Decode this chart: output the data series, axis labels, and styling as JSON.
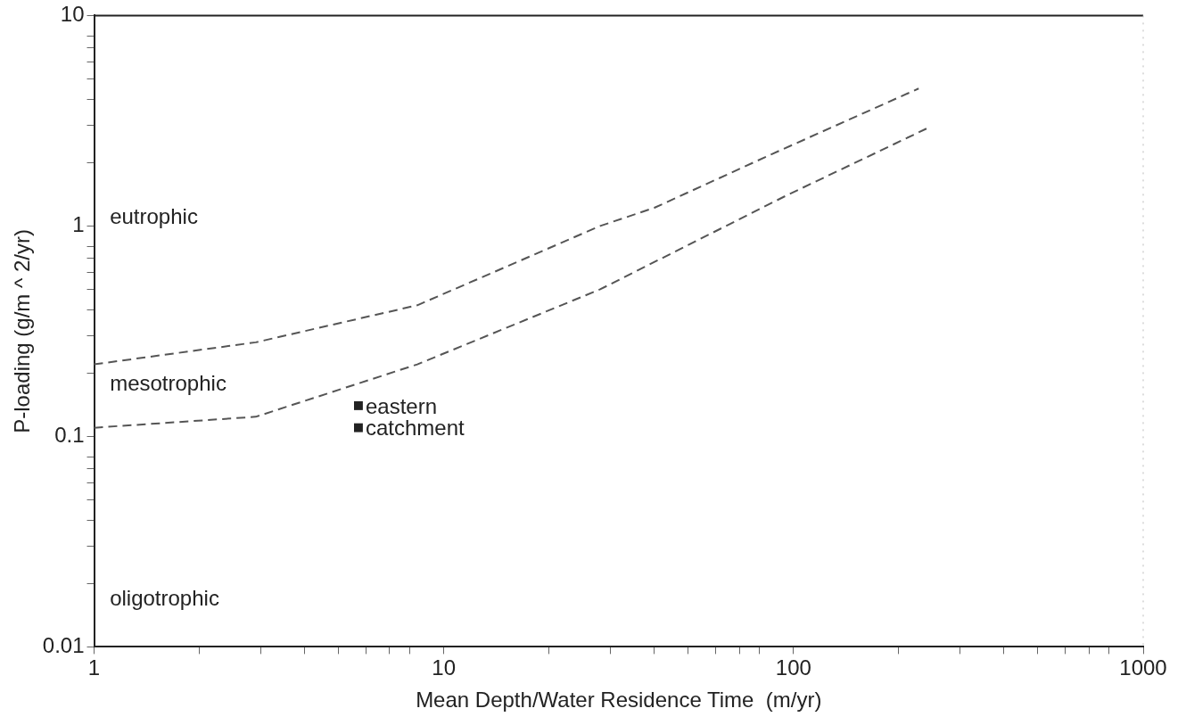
{
  "chart_data": {
    "type": "line",
    "xlabel": "Mean Depth/Water Residence Time  (m/yr)",
    "ylabel": "P-loading (g/m ^ 2/yr)",
    "log": "xy",
    "xlim": [
      1,
      1000
    ],
    "ylim": [
      0.01,
      10
    ],
    "xticks": [
      1,
      {
        "value": 2,
        "label": null
      },
      {
        "value": 3,
        "label": null
      },
      {
        "value": 4,
        "label": null
      },
      {
        "value": 5,
        "label": null
      },
      {
        "value": 6,
        "label": null
      },
      {
        "value": 7,
        "label": null
      },
      {
        "value": 8,
        "label": null
      },
      10,
      {
        "value": 20,
        "label": null
      },
      {
        "value": 30,
        "label": null
      },
      {
        "value": 40,
        "label": null
      },
      {
        "value": 50,
        "label": null
      },
      {
        "value": 60,
        "label": null
      },
      {
        "value": 70,
        "label": null
      },
      {
        "value": 80,
        "label": null
      },
      100,
      {
        "value": 200,
        "label": null
      },
      {
        "value": 300,
        "label": null
      },
      {
        "value": 400,
        "label": null
      },
      {
        "value": 500,
        "label": null
      },
      {
        "value": 600,
        "label": null
      },
      {
        "value": 700,
        "label": null
      },
      {
        "value": 800,
        "label": null
      },
      1000
    ],
    "yticks": [
      0.01,
      {
        "value": 0.02,
        "label": null
      },
      {
        "value": 0.03,
        "label": null
      },
      {
        "value": 0.04,
        "label": null
      },
      {
        "value": 0.05,
        "label": null
      },
      {
        "value": 0.06,
        "label": null
      },
      {
        "value": 0.07,
        "label": null
      },
      {
        "value": 0.08,
        "label": null
      },
      0.1,
      {
        "value": 0.2,
        "label": null
      },
      {
        "value": 0.3,
        "label": null
      },
      {
        "value": 0.4,
        "label": null
      },
      {
        "value": 0.5,
        "label": null
      },
      {
        "value": 0.6,
        "label": null
      },
      {
        "value": 0.7,
        "label": null
      },
      {
        "value": 0.8,
        "label": null
      },
      1,
      {
        "value": 2,
        "label": null
      },
      {
        "value": 3,
        "label": null
      },
      {
        "value": 4,
        "label": null
      },
      {
        "value": 5,
        "label": null
      },
      {
        "value": 6,
        "label": null
      },
      {
        "value": 7,
        "label": null
      },
      {
        "value": 8,
        "label": null
      },
      10
    ],
    "grid": false,
    "legend": false,
    "series": [
      {
        "color": "#555555",
        "line_style": "dashed",
        "marker": "none",
        "x": [
          1,
          2.9,
          8.4,
          28,
          40,
          87,
          228
        ],
        "values": [
          0.22,
          0.28,
          0.42,
          1.0,
          1.22,
          2.2,
          4.5
        ]
      },
      {
        "color": "#555555",
        "line_style": "dashed",
        "marker": "none",
        "x": [
          1,
          2.9,
          8.4,
          28,
          95,
          240
        ],
        "values": [
          0.11,
          0.124,
          0.22,
          0.5,
          1.39,
          2.9
        ]
      },
      {
        "type": "scatter",
        "color": "#222222",
        "marker": "square",
        "x": [
          5.7,
          5.7
        ],
        "values": [
          0.14,
          0.11
        ]
      }
    ],
    "annotations": [
      "eutrophic",
      "mesotrophic",
      "oligotrophic",
      {
        "text": "eastern",
        "x": 5.7,
        "y": 0.14
      },
      {
        "text": "catchment",
        "x": 5.7,
        "y": 0.11
      }
    ]
  }
}
